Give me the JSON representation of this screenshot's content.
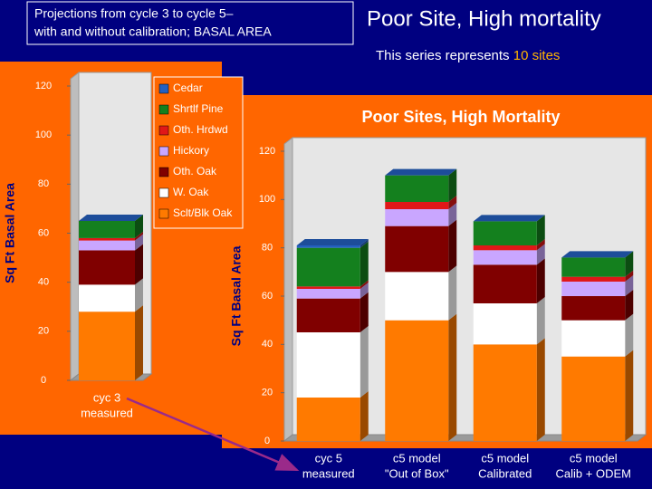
{
  "header": {
    "box_title": [
      "Projections from cycle 3 to cycle 5–",
      "with and without calibration; BASAL AREA"
    ],
    "title": "Poor Site, High mortality",
    "subtitle": "This series represents",
    "subtitle_highlight": "10 sites"
  },
  "chart_data": [
    {
      "type": "stacked_bar",
      "ylabel": "Sq Ft Basal Area",
      "categories": [
        [
          "cyc 3",
          "measured"
        ]
      ],
      "ylim": [
        0,
        120
      ],
      "yticks": [
        0,
        20,
        40,
        60,
        80,
        100,
        120
      ],
      "legend": "right",
      "series": [
        {
          "name": "Sclt/Blk Oak",
          "color": "#ff7a00",
          "values": [
            28
          ]
        },
        {
          "name": "W. Oak",
          "color": "#ffffff",
          "values": [
            11
          ]
        },
        {
          "name": "Oth. Oak",
          "color": "#800000",
          "values": [
            14
          ]
        },
        {
          "name": "Hickory",
          "color": "#c9a6ff",
          "values": [
            4
          ]
        },
        {
          "name": "Oth. Hrdwd",
          "color": "#e01818",
          "values": [
            1
          ]
        },
        {
          "name": "Shrtlf Pine",
          "color": "#14801e",
          "values": [
            7
          ]
        },
        {
          "name": "Cedar",
          "color": "#2460c0",
          "values": [
            0
          ]
        }
      ]
    },
    {
      "type": "stacked_bar",
      "title": "Poor Sites, High Mortality",
      "ylabel": "Sq Ft Basal Area",
      "categories": [
        [
          "cyc 5",
          "measured"
        ],
        [
          "c5 model",
          "\"Out of Box\""
        ],
        [
          "c5 model",
          "Calibrated"
        ],
        [
          "c5 model",
          "Calib + ODEM"
        ]
      ],
      "ylim": [
        0,
        120
      ],
      "yticks": [
        0,
        20,
        40,
        60,
        80,
        100,
        120
      ],
      "legend": "none",
      "series": [
        {
          "name": "Sclt/Blk Oak",
          "color": "#ff7a00",
          "values": [
            18,
            50,
            40,
            35
          ]
        },
        {
          "name": "W. Oak",
          "color": "#ffffff",
          "values": [
            27,
            20,
            17,
            15
          ]
        },
        {
          "name": "Oth. Oak",
          "color": "#800000",
          "values": [
            14,
            19,
            16,
            10
          ]
        },
        {
          "name": "Hickory",
          "color": "#c9a6ff",
          "values": [
            4,
            7,
            6,
            6
          ]
        },
        {
          "name": "Oth. Hrdwd",
          "color": "#e01818",
          "values": [
            1,
            3,
            2,
            2
          ]
        },
        {
          "name": "Shrtlf Pine",
          "color": "#14801e",
          "values": [
            16,
            11,
            10,
            8
          ]
        },
        {
          "name": "Cedar",
          "color": "#2460c0",
          "values": [
            1,
            0,
            0,
            0
          ]
        }
      ]
    }
  ]
}
